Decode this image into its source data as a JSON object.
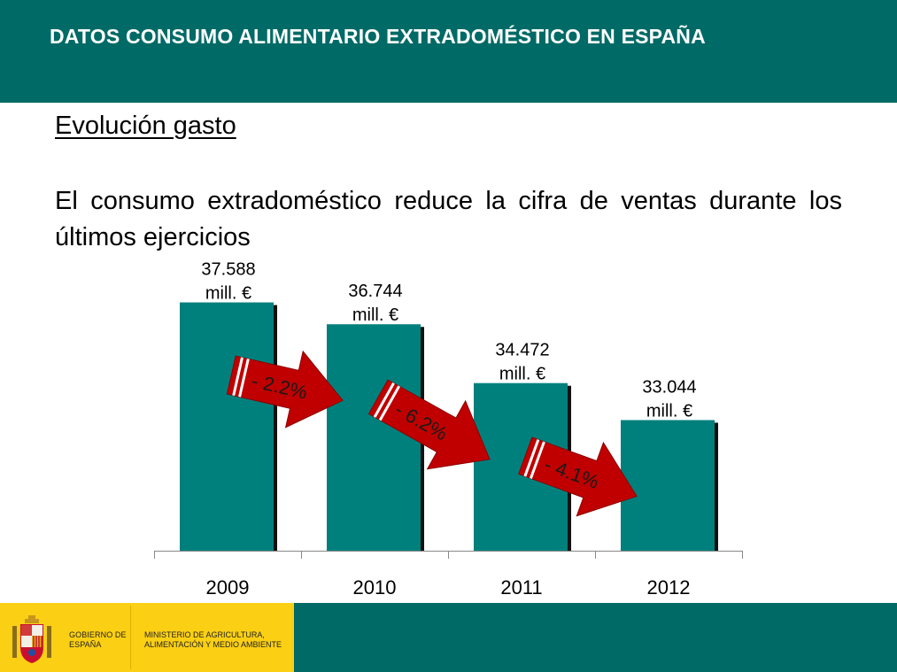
{
  "header": {
    "title": "DATOS CONSUMO ALIMENTARIO EXTRADOMÉSTICO EN ESPAÑA"
  },
  "section": {
    "title": "Evolución gasto"
  },
  "lead": {
    "text": "El consumo extradoméstico reduce la cifra de ventas durante los últimos ejercicios"
  },
  "chart_data": {
    "type": "bar",
    "categories": [
      "2009",
      "2010",
      "2011",
      "2012"
    ],
    "values": [
      37588,
      36744,
      34472,
      33044
    ],
    "value_labels": [
      "37.588",
      "36.744",
      "34.472",
      "33.044"
    ],
    "unit_label": "mill. €",
    "ylim": [
      28000,
      38500
    ],
    "grid": false,
    "annotations": [
      {
        "from": "2009",
        "to": "2010",
        "label": "- 2.2%"
      },
      {
        "from": "2010",
        "to": "2011",
        "label": "- 6.2%"
      },
      {
        "from": "2011",
        "to": "2012",
        "label": "- 4.1%"
      }
    ],
    "colors": {
      "bar": "#00807c",
      "bar_shadow": "#111111",
      "arrow": "#c00000",
      "arrow_stroke": "#8a0000",
      "axis": "#888888"
    }
  },
  "footer": {
    "gov_text": "GOBIERNO DE ESPAÑA",
    "ministry_text": "MINISTERIO DE AGRICULTURA, ALIMENTACIÓN Y MEDIO AMBIENTE",
    "colors": {
      "yellow": "#fbcf13",
      "teal": "#006a66"
    },
    "crest_icon": "coat-of-arms-icon"
  }
}
